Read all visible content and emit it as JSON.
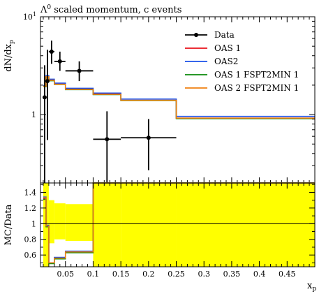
{
  "chart_data": {
    "type": "line",
    "title_main": "Λ",
    "title_sup": "0",
    "title_rest": " scaled momentum, c events",
    "ylabel": "dN/dx",
    "ylabel_sub": "p",
    "ratio_ylabel": "MC/Data",
    "xlabel": "x",
    "xlabel_sub": "p",
    "xlim": [
      0.005,
      0.5
    ],
    "ylim": [
      0.2,
      10
    ],
    "ylog": true,
    "ratio_ylim": [
      0.45,
      1.52
    ],
    "y_ticks_major": [
      {
        "v": 1,
        "label": "1",
        "exp": ""
      },
      {
        "v": 10,
        "label": "10",
        "exp": "1"
      }
    ],
    "x_ticks": [
      {
        "v": 0.05,
        "label": "0.05"
      },
      {
        "v": 0.1,
        "label": "0.1"
      },
      {
        "v": 0.15,
        "label": "0.15"
      },
      {
        "v": 0.2,
        "label": "0.2"
      },
      {
        "v": 0.25,
        "label": "0.25"
      },
      {
        "v": 0.3,
        "label": "0.3"
      },
      {
        "v": 0.35,
        "label": "0.35"
      },
      {
        "v": 0.4,
        "label": "0.4"
      },
      {
        "v": 0.45,
        "label": "0.45"
      }
    ],
    "ratio_ticks": [
      {
        "v": 0.6,
        "label": "0.6"
      },
      {
        "v": 0.8,
        "label": "0.8"
      },
      {
        "v": 1.0,
        "label": "1"
      },
      {
        "v": 1.2,
        "label": "1.2"
      },
      {
        "v": 1.4,
        "label": "1.4"
      }
    ],
    "data_points": [
      {
        "x": 0.0125,
        "xerr": 0.0025,
        "y": 1.5,
        "ylo": 0.2,
        "yhi": 3.2
      },
      {
        "x": 0.0175,
        "xerr": 0.0025,
        "y": 2.2,
        "ylo": 0.55,
        "yhi": 4.6
      },
      {
        "x": 0.025,
        "xerr": 0.005,
        "y": 4.4,
        "ylo": 3.3,
        "yhi": 5.7
      },
      {
        "x": 0.04,
        "xerr": 0.01,
        "y": 3.5,
        "ylo": 2.8,
        "yhi": 4.4
      },
      {
        "x": 0.075,
        "xerr": 0.025,
        "y": 2.8,
        "ylo": 2.2,
        "yhi": 3.5
      },
      {
        "x": 0.125,
        "xerr": 0.025,
        "y": 0.56,
        "ylo": 0.2,
        "yhi": 1.08
      },
      {
        "x": 0.2,
        "xerr": 0.05,
        "y": 0.58,
        "ylo": 0.27,
        "yhi": 0.9
      }
    ],
    "bin_edges": [
      0.01,
      0.015,
      0.02,
      0.03,
      0.05,
      0.1,
      0.15,
      0.25,
      0.5
    ],
    "series": [
      {
        "name": "OAS 1",
        "color": "#e8101a",
        "values": [
          1.95,
          2.45,
          2.25,
          2.05,
          1.82,
          1.62,
          1.4,
          0.92
        ],
        "ratio": [
          1.32,
          0.97,
          0.5,
          0.56,
          0.64,
          3.0,
          3.0,
          3.0
        ]
      },
      {
        "name": "OAS2",
        "color": "#1a50e8",
        "values": [
          1.98,
          2.5,
          2.3,
          2.1,
          1.86,
          1.66,
          1.44,
          0.96
        ],
        "ratio": [
          1.34,
          0.98,
          0.5,
          0.57,
          0.65,
          3.0,
          3.0,
          3.0
        ]
      },
      {
        "name": "OAS 1 FSPT2MIN 1",
        "color": "#0a8a0a",
        "values": [
          1.93,
          2.42,
          2.22,
          2.03,
          1.8,
          1.6,
          1.39,
          0.91
        ],
        "ratio": [
          1.31,
          0.96,
          0.49,
          0.55,
          0.63,
          3.0,
          3.0,
          3.0
        ]
      },
      {
        "name": "OAS 2 FSPT2MIN 1",
        "color": "#f08010",
        "values": [
          1.95,
          2.44,
          2.24,
          2.04,
          1.81,
          1.61,
          1.4,
          0.92
        ],
        "ratio": [
          1.33,
          0.97,
          0.5,
          0.56,
          0.64,
          3.0,
          3.0,
          3.0
        ]
      }
    ],
    "data_series_name": "Data",
    "ratio_bands": [
      {
        "x0": 0.01,
        "x1": 0.015,
        "lo": 0.45,
        "hi": 1.52
      },
      {
        "x0": 0.015,
        "x1": 0.02,
        "lo": 0.45,
        "hi": 1.52
      },
      {
        "x0": 0.02,
        "x1": 0.03,
        "lo": 0.75,
        "hi": 1.3
      },
      {
        "x0": 0.03,
        "x1": 0.05,
        "lo": 0.8,
        "hi": 1.26
      },
      {
        "x0": 0.05,
        "x1": 0.1,
        "lo": 0.78,
        "hi": 1.25
      },
      {
        "x0": 0.1,
        "x1": 0.15,
        "lo": 0.45,
        "hi": 1.52
      },
      {
        "x0": 0.15,
        "x1": 0.25,
        "lo": 0.45,
        "hi": 1.52
      },
      {
        "x0": 0.25,
        "x1": 0.5,
        "lo": 0.45,
        "hi": 1.52
      }
    ],
    "band_color": "#ffff00",
    "legend_position": "top-right",
    "grid": false
  }
}
